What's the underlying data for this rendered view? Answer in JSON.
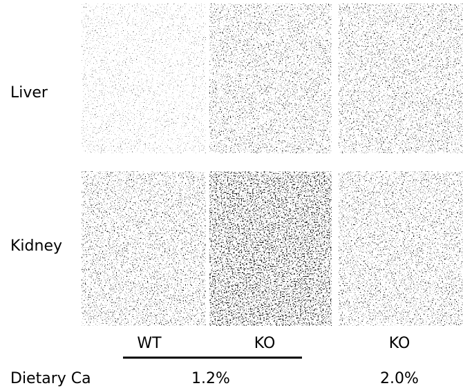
{
  "row_labels": [
    "Liver",
    "Kidney"
  ],
  "column_labels": [
    "WT",
    "KO",
    "KO"
  ],
  "diet_label": "Dietary Ca",
  "diet_values": [
    "1.2%",
    "2.0%"
  ]
}
